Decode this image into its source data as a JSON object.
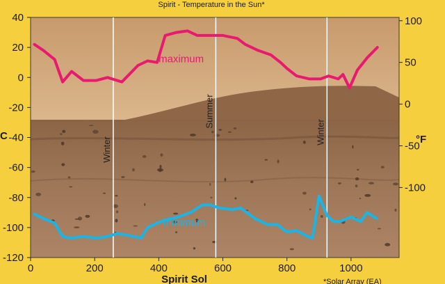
{
  "chart_data": {
    "type": "line",
    "title": "Spirit - Temperature in the Sun*",
    "xlabel": "Spirit Sol",
    "ylabel_left": "°C",
    "ylabel_right": "°F",
    "footnote": "*Solar Array (EA)",
    "xlim": [
      0,
      1150
    ],
    "ylim": [
      -120,
      40
    ],
    "x_ticks": [
      "0",
      "200",
      "400",
      "600",
      "800",
      "1000"
    ],
    "y_ticks_left": [
      "40",
      "20",
      "0",
      "-20",
      "-40",
      "-60",
      "-80",
      "-100",
      "-120"
    ],
    "y_ticks_right": [
      "100",
      "50",
      "0",
      "-50",
      "-100"
    ],
    "grid": false,
    "colors": {
      "maximum": "#e8196e",
      "minimum": "#1ab4e6",
      "season_line": "#ffffff",
      "background": "#f6cf3f"
    },
    "season_markers": [
      {
        "label": "Winter",
        "x": 258
      },
      {
        "label": "Summer",
        "x": 578
      },
      {
        "label": "Winter",
        "x": 925
      }
    ],
    "series": [
      {
        "name": "maximum",
        "x": [
          12,
          40,
          75,
          100,
          128,
          165,
          205,
          240,
          285,
          335,
          365,
          395,
          420,
          455,
          490,
          520,
          560,
          600,
          645,
          670,
          710,
          750,
          780,
          800,
          830,
          870,
          905,
          930,
          960,
          975,
          995,
          1020,
          1050,
          1082
        ],
        "y": [
          22,
          18,
          12,
          -3,
          4,
          -2,
          -2,
          0,
          -3,
          8,
          11,
          10,
          28,
          30,
          31,
          28,
          28,
          28,
          26,
          22,
          18,
          15,
          10,
          6,
          1,
          -1,
          -1,
          1,
          -1,
          2,
          -7,
          5,
          13,
          20
        ]
      },
      {
        "name": "minimum",
        "x": [
          12,
          40,
          75,
          100,
          125,
          165,
          205,
          240,
          270,
          300,
          345,
          365,
          395,
          420,
          460,
          500,
          535,
          560,
          590,
          630,
          655,
          700,
          740,
          770,
          800,
          830,
          865,
          880,
          900,
          925,
          945,
          965,
          1000,
          1030,
          1050,
          1080
        ],
        "y": [
          -91,
          -94,
          -97,
          -106,
          -107,
          -106,
          -107,
          -106,
          -104,
          -105,
          -107,
          -100,
          -97,
          -95,
          -93,
          -90,
          -85,
          -85,
          -87,
          -88,
          -87,
          -94,
          -98,
          -98,
          -103,
          -102,
          -106,
          -107,
          -79,
          -92,
          -96,
          -96,
          -93,
          -96,
          -90,
          -94
        ]
      }
    ],
    "series_labels": [
      {
        "name": "maximum",
        "x": 470,
        "y": 10
      },
      {
        "name": "minimum",
        "x": 480,
        "y": -99
      }
    ]
  }
}
